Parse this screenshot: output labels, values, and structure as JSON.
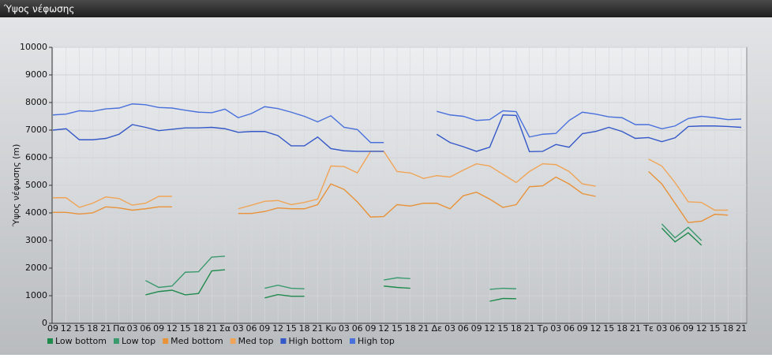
{
  "chart_data": {
    "type": "line",
    "title": "Ύψος νέφωσης",
    "ylabel": "Ύψος νέφωσης (m)",
    "categories": [
      "09",
      "12",
      "15",
      "18",
      "21",
      "Πα",
      "03",
      "06",
      "09",
      "12",
      "15",
      "18",
      "21",
      "Σα",
      "03",
      "06",
      "09",
      "12",
      "15",
      "18",
      "21",
      "Κυ",
      "03",
      "06",
      "09",
      "12",
      "15",
      "18",
      "21",
      "Δε",
      "03",
      "06",
      "09",
      "12",
      "15",
      "18",
      "21",
      "Τρ",
      "03",
      "06",
      "09",
      "12",
      "15",
      "18",
      "21",
      "Τε",
      "03",
      "06",
      "09",
      "12",
      "15",
      "18",
      "21"
    ],
    "ylim": [
      0,
      10000
    ],
    "yticks": [
      0,
      1000,
      2000,
      3000,
      4000,
      5000,
      6000,
      7000,
      8000,
      9000,
      10000
    ],
    "grid": true,
    "legend": "bottom",
    "series": [
      {
        "name": "Low bottom",
        "color": "#1f8a4c",
        "values": [
          null,
          null,
          null,
          null,
          null,
          null,
          null,
          1030,
          1150,
          1200,
          1030,
          1080,
          1900,
          1940,
          null,
          null,
          920,
          1040,
          980,
          980,
          null,
          null,
          null,
          null,
          null,
          1350,
          1300,
          1270,
          null,
          null,
          null,
          null,
          null,
          800,
          900,
          890,
          null,
          null,
          null,
          null,
          null,
          null,
          null,
          null,
          null,
          null,
          3450,
          2950,
          3280,
          2830,
          null,
          null,
          null
        ]
      },
      {
        "name": "Low top",
        "color": "#3a9a6e",
        "values": [
          null,
          null,
          null,
          null,
          null,
          null,
          null,
          1550,
          1300,
          1350,
          1850,
          1870,
          2400,
          2430,
          null,
          null,
          1270,
          1380,
          1270,
          1250,
          null,
          null,
          null,
          null,
          null,
          1570,
          1650,
          1620,
          null,
          null,
          null,
          null,
          null,
          1230,
          1270,
          1250,
          null,
          null,
          null,
          null,
          null,
          null,
          null,
          null,
          null,
          null,
          3600,
          3100,
          3480,
          3000,
          null,
          null,
          null
        ]
      },
      {
        "name": "Med bottom",
        "color": "#e8923a",
        "values": [
          4020,
          4020,
          3960,
          4000,
          4220,
          4180,
          4100,
          4150,
          4220,
          4220,
          null,
          null,
          null,
          null,
          3980,
          3980,
          4050,
          4180,
          4150,
          4150,
          4300,
          5050,
          4850,
          4400,
          3850,
          3870,
          4300,
          4250,
          4350,
          4350,
          4150,
          4620,
          4750,
          4500,
          4200,
          4300,
          4950,
          4980,
          5300,
          5050,
          4700,
          4600,
          null,
          null,
          null,
          5500,
          5050,
          4350,
          3650,
          3700,
          3950,
          3920,
          null
        ]
      },
      {
        "name": "Med top",
        "color": "#f0a457",
        "values": [
          4550,
          4550,
          4200,
          4350,
          4580,
          4520,
          4280,
          4350,
          4600,
          4600,
          null,
          null,
          null,
          null,
          4150,
          4280,
          4420,
          4450,
          4300,
          4380,
          4500,
          5700,
          5680,
          5450,
          6230,
          6230,
          5500,
          5450,
          5250,
          5350,
          5300,
          5550,
          5780,
          5700,
          5400,
          5100,
          5500,
          5780,
          5750,
          5500,
          5050,
          4970,
          null,
          null,
          null,
          5950,
          5700,
          5100,
          4400,
          4380,
          4100,
          4100,
          null
        ]
      },
      {
        "name": "High bottom",
        "color": "#3558c8",
        "values": [
          7000,
          7050,
          6650,
          6650,
          6700,
          6850,
          7200,
          7100,
          6980,
          7030,
          7080,
          7080,
          7100,
          7050,
          6920,
          6950,
          6950,
          6800,
          6430,
          6430,
          6750,
          6330,
          6250,
          6230,
          6230,
          6230,
          null,
          null,
          null,
          6850,
          6550,
          6400,
          6230,
          6380,
          7550,
          7530,
          6220,
          6230,
          6480,
          6380,
          6870,
          6950,
          7100,
          6950,
          6700,
          6730,
          6580,
          6720,
          7130,
          7150,
          7150,
          7130,
          7100
        ]
      },
      {
        "name": "High top",
        "color": "#4a70dc",
        "values": [
          7550,
          7580,
          7700,
          7680,
          7770,
          7800,
          7950,
          7920,
          7820,
          7800,
          7720,
          7650,
          7630,
          7760,
          7450,
          7600,
          7850,
          7780,
          7650,
          7500,
          7300,
          7520,
          7100,
          7020,
          6550,
          6550,
          null,
          null,
          null,
          7680,
          7550,
          7500,
          7350,
          7380,
          7700,
          7670,
          6750,
          6850,
          6880,
          7350,
          7650,
          7580,
          7480,
          7450,
          7200,
          7200,
          7050,
          7150,
          7420,
          7500,
          7450,
          7380,
          7400
        ]
      }
    ]
  }
}
